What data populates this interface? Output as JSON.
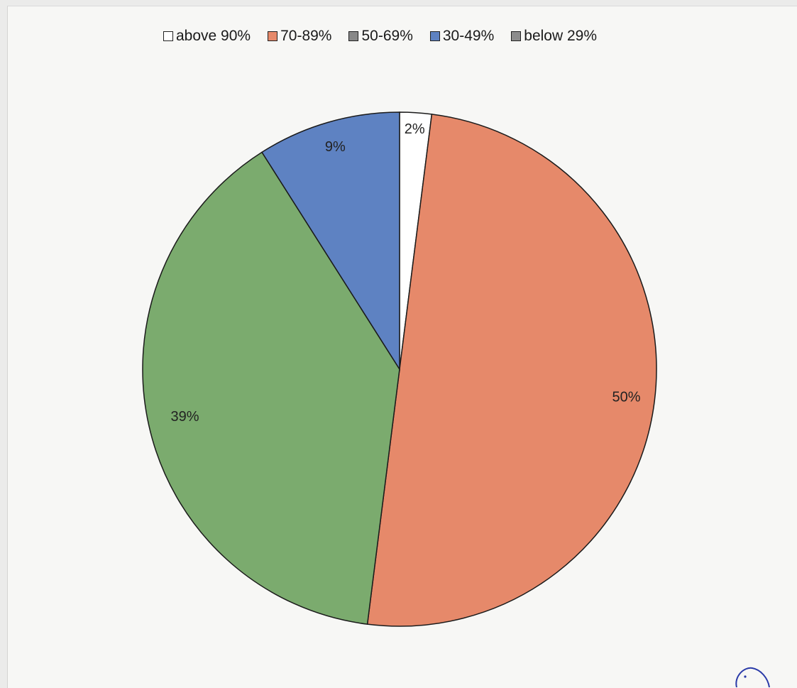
{
  "chart_data": {
    "type": "pie",
    "legend_position": "top",
    "categories": [
      "above 90%",
      "70-89%",
      "50-69%",
      "30-49%",
      "below 29%"
    ],
    "values": [
      2,
      50,
      39,
      9,
      0
    ],
    "labels": [
      "2%",
      "50%",
      "39%",
      "9%",
      ""
    ],
    "colors": [
      "#ffffff",
      "#e6896a",
      "#7bab6e",
      "#5e82c2",
      "#8c8c8c"
    ],
    "legend_swatch_colors": [
      "#ffffff",
      "#e6896a",
      "#888888",
      "#5e82c2",
      "#8c8c8c"
    ]
  },
  "legend": {
    "items": [
      {
        "label": "above 90%",
        "color": "#ffffff"
      },
      {
        "label": "70-89%",
        "color": "#e6896a"
      },
      {
        "label": "50-69%",
        "color": "#888888"
      },
      {
        "label": "30-49%",
        "color": "#5e82c2"
      },
      {
        "label": "below 29%",
        "color": "#8c8c8c"
      }
    ]
  }
}
